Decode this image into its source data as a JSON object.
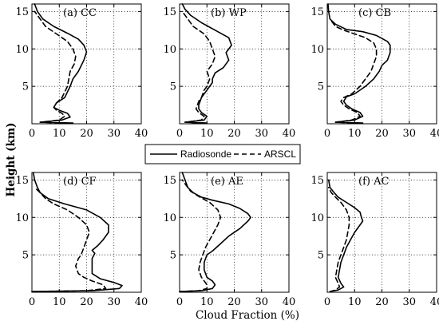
{
  "figure": {
    "ylabel": "Height (km)",
    "xlabel": "Cloud Fraction (%)"
  },
  "legend": {
    "items": [
      {
        "name": "Radiosonde",
        "style": "solid"
      },
      {
        "name": "ARSCL",
        "style": "dashed"
      }
    ]
  },
  "chart_data": [
    {
      "type": "line",
      "label": "(a) CC",
      "xlim": [
        0,
        40
      ],
      "ylim": [
        0,
        16
      ],
      "xticks": [
        0,
        10,
        20,
        30,
        40
      ],
      "yticks": [
        5,
        10,
        15
      ],
      "grid": true,
      "series": [
        {
          "name": "Radiosonde",
          "points": [
            [
              15,
              0.1
            ],
            [
              3,
              0.2
            ],
            [
              11,
              0.5
            ],
            [
              14,
              0.9
            ],
            [
              13,
              1.4
            ],
            [
              10,
              1.8
            ],
            [
              8,
              2.2
            ],
            [
              9,
              2.8
            ],
            [
              12,
              3.5
            ],
            [
              14,
              5
            ],
            [
              15,
              6
            ],
            [
              17,
              7
            ],
            [
              19,
              8.5
            ],
            [
              20,
              9.6
            ],
            [
              19,
              10.5
            ],
            [
              17,
              11.3
            ],
            [
              13,
              12.1
            ],
            [
              8,
              13
            ],
            [
              4,
              14
            ],
            [
              2,
              15
            ],
            [
              1,
              16
            ]
          ]
        },
        {
          "name": "ARSCL",
          "points": [
            [
              13,
              0.1
            ],
            [
              3,
              0.2
            ],
            [
              10,
              0.5
            ],
            [
              12,
              1.0
            ],
            [
              11,
              1.4
            ],
            [
              9,
              1.8
            ],
            [
              8,
              2.2
            ],
            [
              9,
              2.8
            ],
            [
              11,
              3.5
            ],
            [
              13,
              5
            ],
            [
              13.5,
              6
            ],
            [
              14,
              7
            ],
            [
              15.5,
              8
            ],
            [
              16,
              9
            ],
            [
              15,
              10
            ],
            [
              13,
              11
            ],
            [
              9,
              12
            ],
            [
              5,
              13
            ],
            [
              3,
              14
            ],
            [
              1,
              15
            ]
          ]
        }
      ]
    },
    {
      "type": "line",
      "label": "(b) WP",
      "xlim": [
        0,
        40
      ],
      "ylim": [
        0,
        16
      ],
      "xticks": [
        0,
        10,
        20,
        30,
        40
      ],
      "yticks": [
        5,
        10,
        15
      ],
      "grid": true,
      "series": [
        {
          "name": "Radiosonde",
          "points": [
            [
              10,
              0.1
            ],
            [
              2,
              0.2
            ],
            [
              9,
              0.5
            ],
            [
              10,
              1.0
            ],
            [
              8,
              1.5
            ],
            [
              7,
              2.0
            ],
            [
              7,
              2.5
            ],
            [
              8,
              3.5
            ],
            [
              10,
              4.5
            ],
            [
              11,
              5
            ],
            [
              12,
              5.5
            ],
            [
              12,
              6
            ],
            [
              13,
              6.8
            ],
            [
              16,
              7.5
            ],
            [
              18,
              8.5
            ],
            [
              17,
              9.5
            ],
            [
              19,
              10.5
            ],
            [
              18,
              11.5
            ],
            [
              13,
              12.5
            ],
            [
              8,
              13.5
            ],
            [
              4,
              14.5
            ],
            [
              2,
              15.3
            ],
            [
              1,
              16
            ]
          ]
        },
        {
          "name": "ARSCL",
          "points": [
            [
              9,
              0.1
            ],
            [
              2,
              0.2
            ],
            [
              8,
              0.5
            ],
            [
              9,
              1.0
            ],
            [
              7,
              1.5
            ],
            [
              6,
              2.0
            ],
            [
              7,
              3.0
            ],
            [
              8,
              3.5
            ],
            [
              9,
              4.5
            ],
            [
              10,
              5
            ],
            [
              11,
              6
            ],
            [
              10,
              7
            ],
            [
              12,
              8
            ],
            [
              13,
              9
            ],
            [
              12,
              10
            ],
            [
              11,
              11
            ],
            [
              9,
              12
            ],
            [
              5,
              13
            ],
            [
              3,
              14
            ],
            [
              1,
              15
            ]
          ]
        }
      ]
    },
    {
      "type": "line",
      "label": "(c) CB",
      "xlim": [
        0,
        40
      ],
      "ylim": [
        0,
        16
      ],
      "xticks": [
        0,
        10,
        20,
        30,
        40
      ],
      "yticks": [
        5,
        10,
        15
      ],
      "grid": true,
      "series": [
        {
          "name": "Radiosonde",
          "points": [
            [
              13,
              0.1
            ],
            [
              3,
              0.2
            ],
            [
              10,
              0.5
            ],
            [
              13,
              1.0
            ],
            [
              12,
              1.5
            ],
            [
              9,
              2
            ],
            [
              7,
              2.5
            ],
            [
              6,
              3
            ],
            [
              7,
              3.6
            ],
            [
              10,
              4
            ],
            [
              14,
              5
            ],
            [
              17,
              6
            ],
            [
              19,
              7
            ],
            [
              20,
              7.8
            ],
            [
              22,
              8.5
            ],
            [
              23,
              9.5
            ],
            [
              23,
              10.5
            ],
            [
              22,
              11
            ],
            [
              18,
              11.8
            ],
            [
              13,
              12.3
            ],
            [
              7,
              12.6
            ],
            [
              3,
              13.3
            ],
            [
              1,
              14
            ],
            [
              0.5,
              15
            ],
            [
              0.3,
              16
            ]
          ]
        },
        {
          "name": "ARSCL",
          "points": [
            [
              12,
              0.1
            ],
            [
              3,
              0.2
            ],
            [
              9,
              0.5
            ],
            [
              12,
              1.0
            ],
            [
              11,
              1.5
            ],
            [
              8,
              2
            ],
            [
              6,
              2.5
            ],
            [
              5,
              3
            ],
            [
              6,
              3.5
            ],
            [
              9,
              4
            ],
            [
              12,
              5
            ],
            [
              14,
              6
            ],
            [
              16,
              7
            ],
            [
              17,
              8
            ],
            [
              18,
              9
            ],
            [
              18,
              10
            ],
            [
              17,
              10.8
            ],
            [
              14,
              11.5
            ],
            [
              10,
              12
            ],
            [
              6,
              12.5
            ],
            [
              3,
              13
            ],
            [
              1,
              14
            ]
          ]
        }
      ]
    },
    {
      "type": "line",
      "label": "(d) CF",
      "xlim": [
        0,
        40
      ],
      "ylim": [
        0,
        16
      ],
      "xticks": [
        0,
        10,
        20,
        30,
        40
      ],
      "yticks": [
        5,
        10,
        15
      ],
      "grid": true,
      "series": [
        {
          "name": "Radiosonde",
          "points": [
            [
              0,
              0.1
            ],
            [
              22,
              0.2
            ],
            [
              32,
              0.5
            ],
            [
              33,
              0.9
            ],
            [
              30,
              1.3
            ],
            [
              25,
              1.8
            ],
            [
              22,
              2.5
            ],
            [
              22,
              3.5
            ],
            [
              22,
              4.5
            ],
            [
              23,
              5.2
            ],
            [
              22,
              5.6
            ],
            [
              24,
              6.2
            ],
            [
              26,
              7.0
            ],
            [
              28,
              8
            ],
            [
              28,
              9
            ],
            [
              25,
              10
            ],
            [
              20,
              11
            ],
            [
              12,
              11.8
            ],
            [
              6,
              12.5
            ],
            [
              3,
              13.3
            ],
            [
              2,
              14
            ],
            [
              1,
              15
            ],
            [
              0.5,
              16
            ]
          ]
        },
        {
          "name": "ARSCL",
          "points": [
            [
              0,
              0.1
            ],
            [
              20,
              0.2
            ],
            [
              27,
              0.5
            ],
            [
              26,
              1.0
            ],
            [
              22,
              1.5
            ],
            [
              19,
              2
            ],
            [
              17,
              2.5
            ],
            [
              16,
              3.5
            ],
            [
              17,
              4.5
            ],
            [
              18,
              5
            ],
            [
              19,
              6
            ],
            [
              20,
              7
            ],
            [
              21,
              8
            ],
            [
              20,
              9
            ],
            [
              17,
              10
            ],
            [
              13,
              11
            ],
            [
              8,
              11.8
            ],
            [
              5,
              12.5
            ],
            [
              3,
              13.3
            ],
            [
              1,
              14
            ]
          ]
        }
      ]
    },
    {
      "type": "line",
      "label": "(e) AE",
      "xlim": [
        0,
        40
      ],
      "ylim": [
        0,
        16
      ],
      "xticks": [
        0,
        10,
        20,
        30,
        40
      ],
      "yticks": [
        5,
        10,
        15
      ],
      "grid": true,
      "series": [
        {
          "name": "Radiosonde",
          "points": [
            [
              0,
              0.1
            ],
            [
              8,
              0.2
            ],
            [
              12,
              0.5
            ],
            [
              13,
              1
            ],
            [
              12,
              1.5
            ],
            [
              10,
              2
            ],
            [
              9,
              3
            ],
            [
              9,
              4
            ],
            [
              10,
              5
            ],
            [
              12,
              5.5
            ],
            [
              15,
              6.5
            ],
            [
              18,
              7.5
            ],
            [
              22,
              8.5
            ],
            [
              25,
              9.5
            ],
            [
              26,
              10
            ],
            [
              25,
              10.5
            ],
            [
              22,
              11.2
            ],
            [
              18,
              11.8
            ],
            [
              12,
              12.3
            ],
            [
              8,
              12.7
            ],
            [
              5,
              13.3
            ],
            [
              3,
              14
            ],
            [
              2,
              15
            ],
            [
              1,
              16
            ]
          ]
        },
        {
          "name": "ARSCL",
          "points": [
            [
              0,
              0.1
            ],
            [
              7,
              0.2
            ],
            [
              10,
              0.5
            ],
            [
              10,
              1
            ],
            [
              9,
              1.5
            ],
            [
              8,
              2
            ],
            [
              7,
              3
            ],
            [
              7.5,
              4
            ],
            [
              8.5,
              5
            ],
            [
              9.5,
              6
            ],
            [
              11,
              7
            ],
            [
              12.5,
              8
            ],
            [
              14,
              9
            ],
            [
              15,
              10
            ],
            [
              14,
              11
            ],
            [
              11,
              12
            ],
            [
              7,
              12.8
            ],
            [
              4,
              13.5
            ],
            [
              2,
              14.5
            ],
            [
              1,
              15
            ]
          ]
        }
      ]
    },
    {
      "type": "line",
      "label": "(f) AC",
      "xlim": [
        0,
        40
      ],
      "ylim": [
        0,
        16
      ],
      "xticks": [
        0,
        10,
        20,
        30,
        40
      ],
      "yticks": [
        5,
        10,
        15
      ],
      "grid": true,
      "series": [
        {
          "name": "Radiosonde",
          "points": [
            [
              1,
              0.1
            ],
            [
              4,
              0.3
            ],
            [
              6,
              0.7
            ],
            [
              5,
              1.2
            ],
            [
              4,
              2
            ],
            [
              4.5,
              3
            ],
            [
              5,
              4
            ],
            [
              6,
              5
            ],
            [
              7,
              6
            ],
            [
              8.5,
              7
            ],
            [
              10,
              8
            ],
            [
              12,
              9
            ],
            [
              13,
              9.5
            ],
            [
              12.5,
              10
            ],
            [
              12,
              10.7
            ],
            [
              10,
              11.3
            ],
            [
              7,
              12
            ],
            [
              4,
              12.7
            ],
            [
              2.5,
              13.3
            ],
            [
              1,
              14
            ],
            [
              0.5,
              15
            ]
          ]
        },
        {
          "name": "ARSCL",
          "points": [
            [
              1,
              0.1
            ],
            [
              3,
              0.3
            ],
            [
              4.5,
              0.7
            ],
            [
              4,
              1.2
            ],
            [
              3,
              2
            ],
            [
              3.5,
              3
            ],
            [
              4,
              4
            ],
            [
              5,
              5
            ],
            [
              6,
              6
            ],
            [
              7,
              7
            ],
            [
              7.5,
              8
            ],
            [
              8,
              9
            ],
            [
              8,
              10
            ],
            [
              7,
              11
            ],
            [
              5,
              12
            ],
            [
              3,
              12.7
            ],
            [
              1.5,
              13.3
            ],
            [
              0.5,
              14
            ]
          ]
        }
      ]
    }
  ]
}
